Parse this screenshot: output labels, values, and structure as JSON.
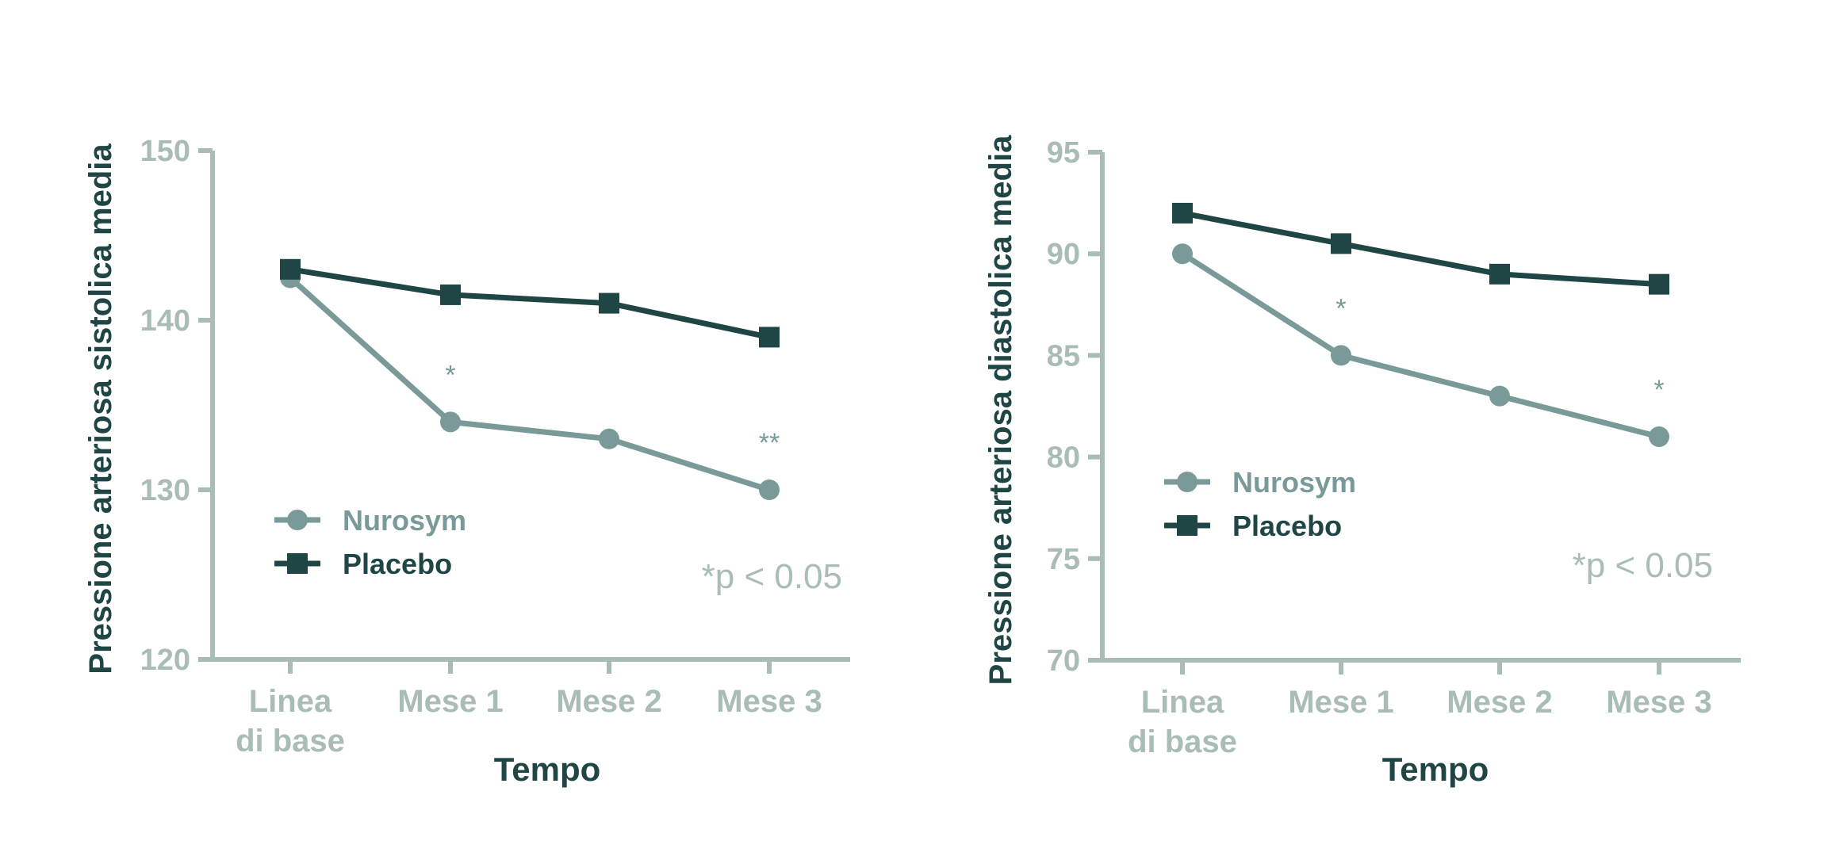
{
  "colors": {
    "nurosym": "#7a9a9a",
    "placebo": "#1f4545",
    "axis": "#a9bcb6",
    "title": "#1f4545"
  },
  "chart_data": [
    {
      "type": "line",
      "title": "",
      "xlabel": "Tempo",
      "ylabel": "Pressione arteriosa sistolica media",
      "categories": [
        [
          "Linea",
          "di base"
        ],
        [
          "Mese 1"
        ],
        [
          "Mese 2"
        ],
        [
          "Mese 3"
        ]
      ],
      "ylim": [
        120,
        150
      ],
      "yticks": [
        120,
        130,
        140,
        150
      ],
      "series": [
        {
          "name": "Nurosym",
          "marker": "circle",
          "values": [
            142.5,
            134,
            133,
            130
          ]
        },
        {
          "name": "Placebo",
          "marker": "square",
          "values": [
            143,
            141.5,
            141,
            139
          ]
        }
      ],
      "significance": [
        {
          "index": 1,
          "label": "*"
        },
        {
          "index": 3,
          "label": "**"
        }
      ],
      "legend_position": "center-left",
      "note": "*p < 0.05"
    },
    {
      "type": "line",
      "title": "",
      "xlabel": "Tempo",
      "ylabel": "Pressione arteriosa diastolica media",
      "categories": [
        [
          "Linea",
          "di base"
        ],
        [
          "Mese 1"
        ],
        [
          "Mese 2"
        ],
        [
          "Mese 3"
        ]
      ],
      "ylim": [
        70,
        95
      ],
      "yticks": [
        70,
        75,
        80,
        85,
        90,
        95
      ],
      "series": [
        {
          "name": "Nurosym",
          "marker": "circle",
          "values": [
            90,
            85,
            83,
            81
          ]
        },
        {
          "name": "Placebo",
          "marker": "square",
          "values": [
            92,
            90.5,
            89,
            88.5
          ]
        }
      ],
      "significance": [
        {
          "index": 1,
          "label": "*"
        },
        {
          "index": 3,
          "label": "*"
        }
      ],
      "legend_position": "center-left",
      "note": "*p < 0.05"
    }
  ]
}
